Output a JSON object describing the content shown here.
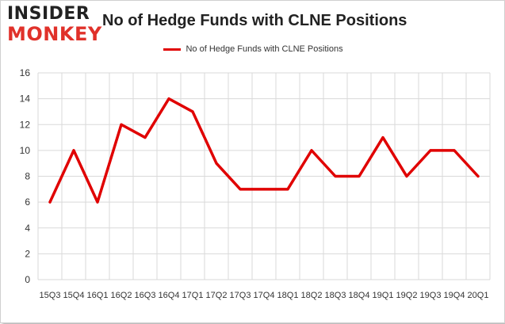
{
  "logo": {
    "top": "INSIDER",
    "bottom": "MONKEY"
  },
  "chart_data": {
    "type": "line",
    "title": "No of Hedge Funds with CLNE Positions",
    "xlabel": "",
    "ylabel": "",
    "categories": [
      "15Q3",
      "15Q4",
      "16Q1",
      "16Q2",
      "16Q3",
      "16Q4",
      "17Q1",
      "17Q2",
      "17Q3",
      "17Q4",
      "18Q1",
      "18Q2",
      "18Q3",
      "18Q4",
      "19Q1",
      "19Q2",
      "19Q3",
      "19Q4",
      "20Q1"
    ],
    "series": [
      {
        "name": "No of Hedge Funds with CLNE Positions",
        "values": [
          6,
          10,
          6,
          12,
          11,
          14,
          13,
          9,
          7,
          7,
          7,
          10,
          8,
          8,
          11,
          8,
          10,
          10,
          8
        ],
        "color": "#e00000"
      }
    ],
    "ylim": [
      0,
      16
    ],
    "yticks": [
      0,
      2,
      4,
      6,
      8,
      10,
      12,
      14,
      16
    ],
    "grid": true,
    "legend": "top"
  }
}
